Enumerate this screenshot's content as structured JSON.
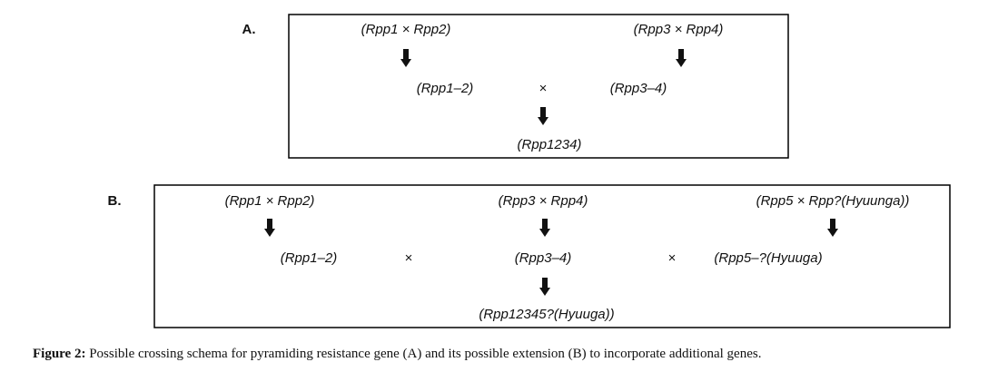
{
  "panels": [
    {
      "label": "A.",
      "nodes": [
        "(Rpp1 × Rpp2)",
        "(Rpp3 × Rpp4)",
        "(Rpp1–2)",
        "(Rpp3–4)",
        "(Rpp1234)"
      ],
      "operators": [
        "×"
      ]
    },
    {
      "label": "B.",
      "nodes": [
        "(Rpp1 × Rpp2)",
        "(Rpp3 × Rpp4)",
        "(Rpp5 ×  Rpp?(Hyuunga))",
        "(Rpp1–2)",
        "(Rpp3–4)",
        "(Rpp5–?(Hyuuga)",
        "(Rpp12345?(Hyuuga))"
      ],
      "operators": [
        "×",
        "×"
      ]
    }
  ],
  "caption": {
    "label": "Figure 2:",
    "text": "Possible crossing schema for pyramiding resistance gene (A) and its possible extension (B) to incorporate additional genes."
  }
}
